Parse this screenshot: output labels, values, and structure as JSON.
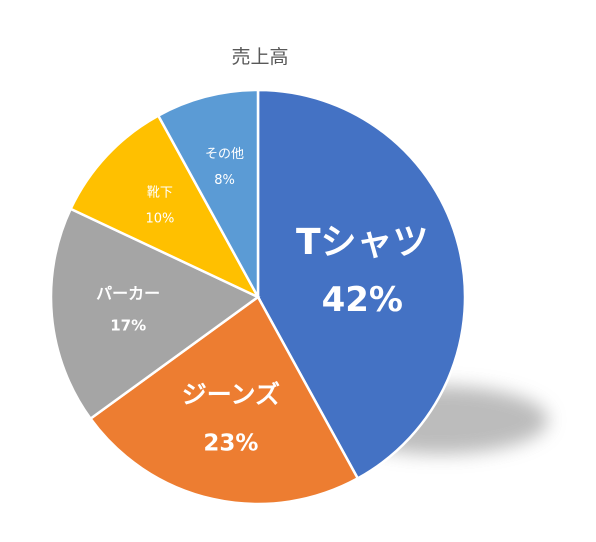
{
  "chart_data": {
    "type": "pie",
    "title": "売上高",
    "categories": [
      "Tシャツ",
      "ジーンズ",
      "パーカー",
      "靴下",
      "その他"
    ],
    "values": [
      42,
      23,
      17,
      10,
      8
    ],
    "value_labels": [
      "42%",
      "23%",
      "17%",
      "10%",
      "8%"
    ],
    "colors": [
      "#4472C4",
      "#ED7D31",
      "#A5A5A5",
      "#FFC000",
      "#5B9BD5"
    ],
    "start_angle_deg": 0,
    "direction": "clockwise",
    "legend": "none",
    "shadow": true
  }
}
